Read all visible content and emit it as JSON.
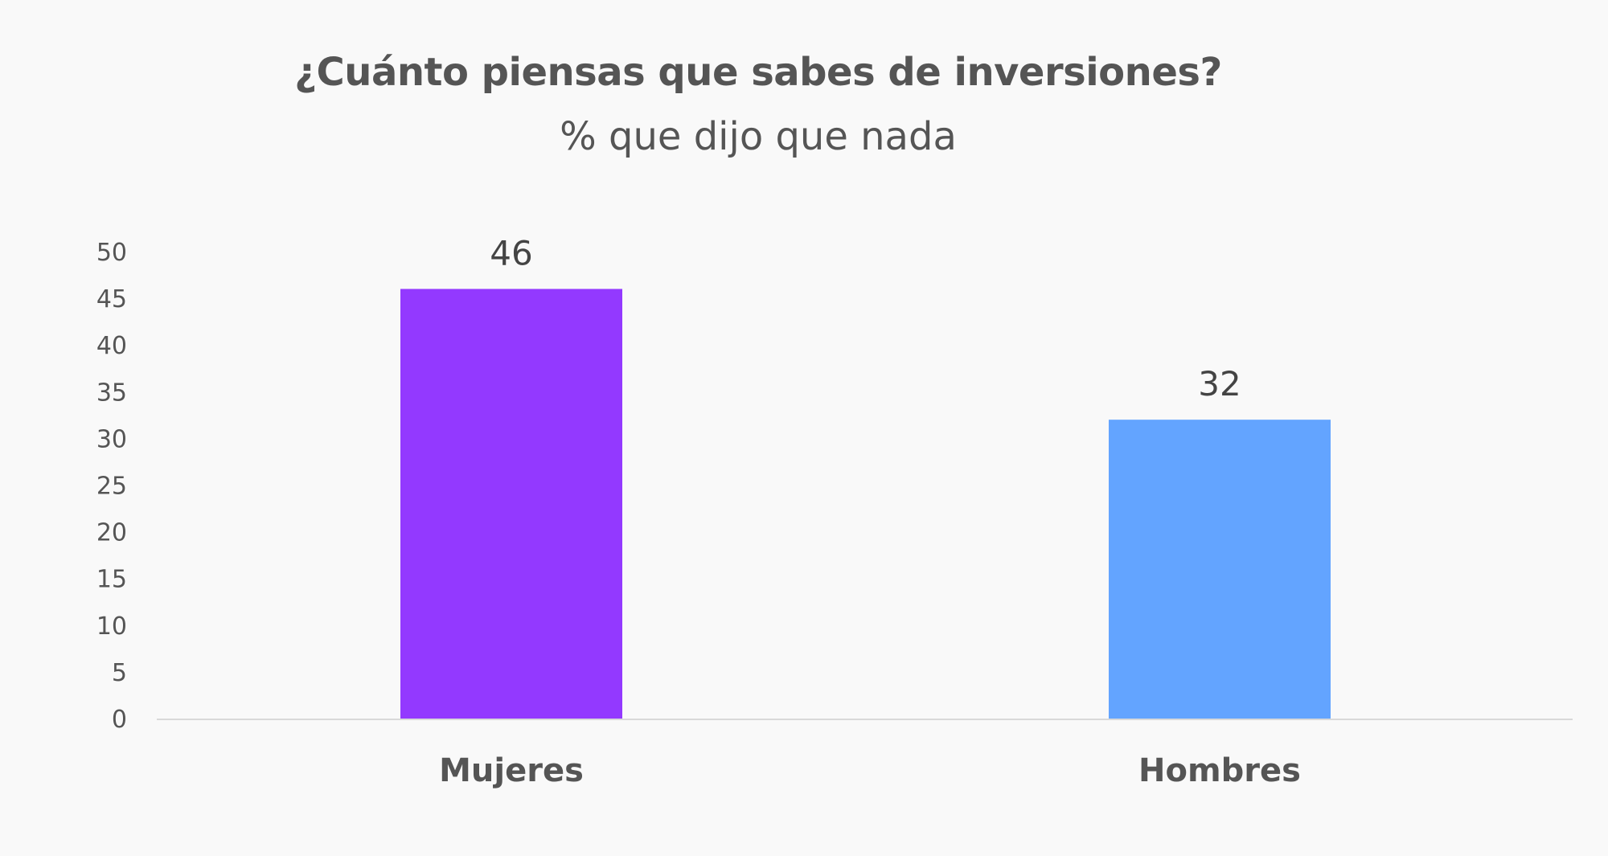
{
  "chart_data": {
    "type": "bar",
    "title": "¿Cuánto piensas que sabes de inversiones?",
    "subtitle": "% que dijo que nada",
    "categories": [
      "Mujeres",
      "Hombres"
    ],
    "values": [
      46,
      32
    ],
    "data_labels": [
      "46",
      "32"
    ],
    "colors": [
      "#9339ff",
      "#63a4ff"
    ],
    "ylim": [
      0,
      50
    ],
    "yticks": [
      0,
      5,
      10,
      15,
      20,
      25,
      30,
      35,
      40,
      45,
      50
    ],
    "grid": false,
    "xlabel": "",
    "ylabel": ""
  }
}
